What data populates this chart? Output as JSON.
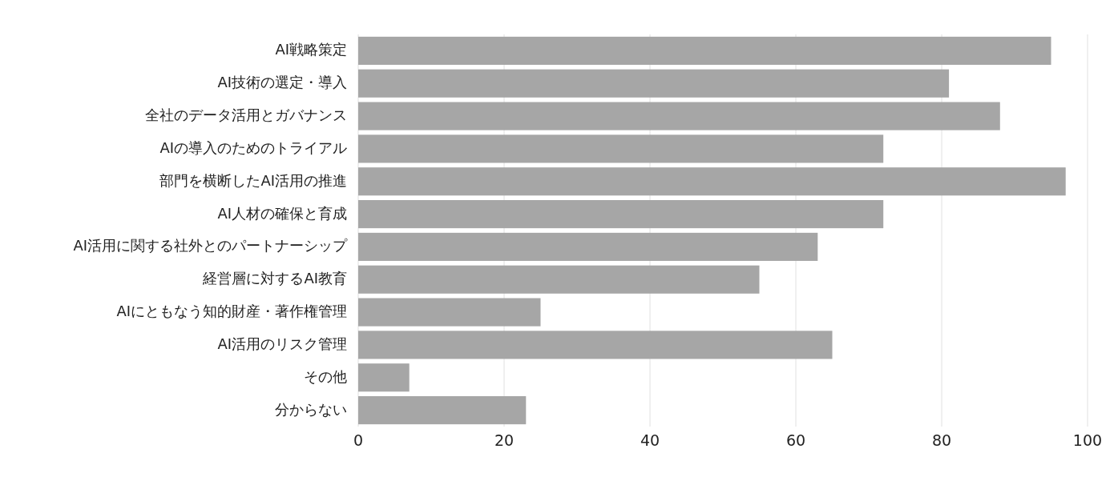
{
  "chart_data": {
    "type": "bar",
    "orientation": "horizontal",
    "categories": [
      "AI戦略策定",
      "AI技術の選定・導入",
      "全社のデータ活用とガバナンス",
      "AIの導入のためのトライアル",
      "部門を横断したAI活用の推進",
      "AI人材の確保と育成",
      "AI活用に関する社外とのパートナーシップ",
      "経営層に対するAI教育",
      "AIにともなう知的財産・著作権管理",
      "AI活用のリスク管理",
      "その他",
      "分からない"
    ],
    "values": [
      95,
      81,
      88,
      72,
      97,
      72,
      63,
      55,
      25,
      65,
      7,
      23
    ],
    "color": "#a6a6a6",
    "xlim": [
      0,
      100
    ],
    "xticks": [
      0,
      20,
      40,
      60,
      80,
      100
    ],
    "grid": "x"
  }
}
